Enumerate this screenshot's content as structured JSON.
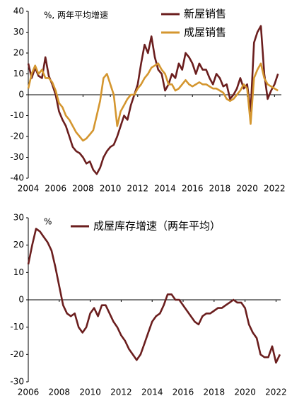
{
  "chart_data": [
    {
      "type": "line",
      "annotation": "%, 两年平均增速",
      "legend": "upper right",
      "xlim": [
        2004,
        2022.5
      ],
      "xticks": [
        2004,
        2006,
        2008,
        2010,
        2012,
        2014,
        2016,
        2018,
        2020,
        2022
      ],
      "ylim": [
        -40,
        40
      ],
      "yticks": [
        -40,
        -30,
        -20,
        -10,
        0,
        10,
        20,
        30,
        40
      ],
      "x": [
        2004,
        2004.25,
        2004.5,
        2004.75,
        2005,
        2005.25,
        2005.5,
        2005.75,
        2006,
        2006.25,
        2006.5,
        2006.75,
        2007,
        2007.25,
        2007.5,
        2007.75,
        2008,
        2008.25,
        2008.5,
        2008.75,
        2009,
        2009.25,
        2009.5,
        2009.75,
        2010,
        2010.25,
        2010.5,
        2010.75,
        2011,
        2011.25,
        2011.5,
        2011.75,
        2012,
        2012.25,
        2012.5,
        2012.75,
        2013,
        2013.25,
        2013.5,
        2013.75,
        2014,
        2014.25,
        2014.5,
        2014.75,
        2015,
        2015.25,
        2015.5,
        2015.75,
        2016,
        2016.25,
        2016.5,
        2016.75,
        2017,
        2017.25,
        2017.5,
        2017.75,
        2018,
        2018.25,
        2018.5,
        2018.75,
        2019,
        2019.25,
        2019.5,
        2019.75,
        2020,
        2020.25,
        2020.5,
        2020.75,
        2021,
        2021.25,
        2021.5,
        2021.75,
        2022,
        2022.25
      ],
      "series": [
        {
          "name": "新屋销售",
          "color": "#6b1e1e",
          "values": [
            15,
            8,
            13,
            9,
            8,
            18,
            9,
            5,
            0,
            -8,
            -12,
            -15,
            -20,
            -25,
            -27,
            -28,
            -30,
            -33,
            -32,
            -36,
            -38,
            -35,
            -30,
            -27,
            -25,
            -24,
            -20,
            -15,
            -10,
            -12,
            -5,
            0,
            5,
            15,
            24,
            20,
            28,
            18,
            12,
            10,
            2,
            5,
            10,
            8,
            15,
            12,
            20,
            18,
            15,
            10,
            15,
            12,
            12,
            8,
            5,
            10,
            8,
            4,
            5,
            -2,
            0,
            3,
            8,
            3,
            5,
            -8,
            25,
            30,
            33,
            10,
            -2,
            2,
            5,
            10
          ]
        },
        {
          "name": "成屋销售",
          "color": "#d4962f",
          "values": [
            3,
            10,
            14,
            10,
            12,
            8,
            8,
            6,
            2,
            -4,
            -6,
            -10,
            -12,
            -15,
            -18,
            -20,
            -22,
            -21,
            -19,
            -17,
            -10,
            -3,
            8,
            10,
            5,
            0,
            -15,
            -8,
            -5,
            -2,
            0,
            0,
            3,
            5,
            8,
            10,
            13,
            14,
            15,
            12,
            10,
            5,
            5,
            2,
            3,
            5,
            7,
            5,
            4,
            5,
            6,
            5,
            5,
            4,
            3,
            3,
            2,
            1,
            -2,
            -3,
            -2,
            0,
            2,
            5,
            3,
            -14,
            8,
            12,
            15,
            8,
            5,
            4,
            3,
            2
          ]
        }
      ]
    },
    {
      "type": "line",
      "annotation": "%",
      "legend": "upper left",
      "xlim": [
        2006,
        2022.3
      ],
      "xticks": [
        2006,
        2008,
        2010,
        2012,
        2014,
        2016,
        2018,
        2020,
        2022
      ],
      "ylim": [
        -30,
        30
      ],
      "yticks": [
        -30,
        -20,
        -10,
        0,
        10,
        20,
        30
      ],
      "x": [
        2006,
        2006.25,
        2006.5,
        2006.75,
        2007,
        2007.25,
        2007.5,
        2007.75,
        2008,
        2008.25,
        2008.5,
        2008.75,
        2009,
        2009.25,
        2009.5,
        2009.75,
        2010,
        2010.25,
        2010.5,
        2010.75,
        2011,
        2011.25,
        2011.5,
        2011.75,
        2012,
        2012.25,
        2012.5,
        2012.75,
        2013,
        2013.25,
        2013.5,
        2013.75,
        2014,
        2014.25,
        2014.5,
        2014.75,
        2015,
        2015.25,
        2015.5,
        2015.75,
        2016,
        2016.25,
        2016.5,
        2016.75,
        2017,
        2017.25,
        2017.5,
        2017.75,
        2018,
        2018.25,
        2018.5,
        2018.75,
        2019,
        2019.25,
        2019.5,
        2019.75,
        2020,
        2020.25,
        2020.5,
        2020.75,
        2021,
        2021.25,
        2021.5,
        2021.75,
        2022,
        2022.25
      ],
      "series": [
        {
          "name": "成屋库存增速（两年平均）",
          "color": "#6b1e1e",
          "values": [
            13,
            20,
            26,
            25,
            23,
            21,
            18,
            12,
            5,
            -2,
            -5,
            -6,
            -5,
            -10,
            -12,
            -10,
            -5,
            -3,
            -6,
            -2,
            -2,
            -5,
            -8,
            -10,
            -13,
            -15,
            -18,
            -20,
            -22,
            -20,
            -16,
            -12,
            -8,
            -6,
            -5,
            -2,
            2,
            2,
            0,
            0,
            -2,
            -4,
            -6,
            -8,
            -9,
            -6,
            -5,
            -5,
            -4,
            -3,
            -3,
            -2,
            -1,
            0,
            -1,
            -1,
            -3,
            -9,
            -12,
            -14,
            -20,
            -21,
            -21,
            -17,
            -23,
            -20
          ]
        }
      ]
    }
  ]
}
